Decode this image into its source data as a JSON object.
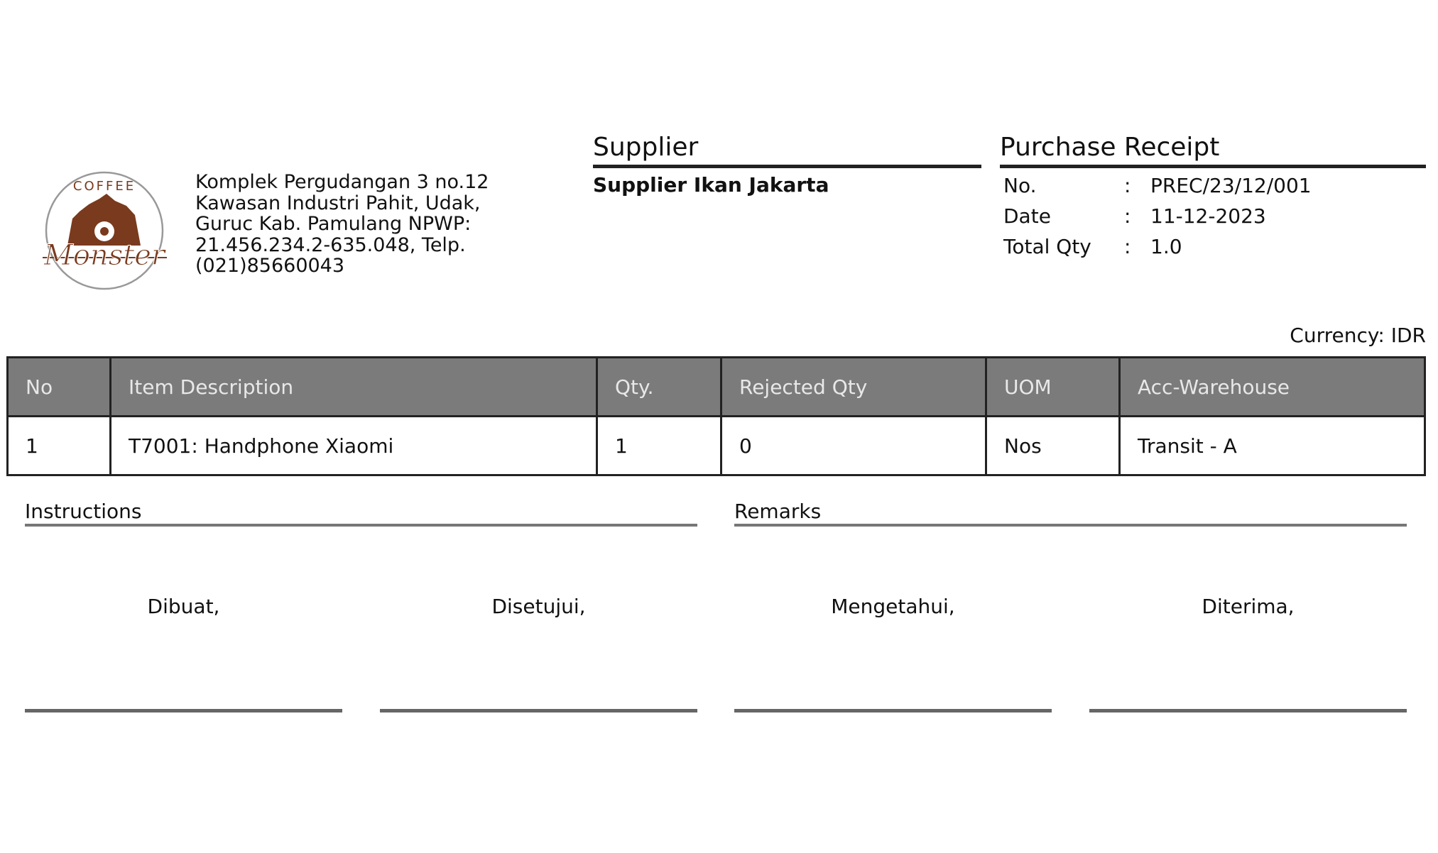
{
  "company": {
    "logo_text": [
      "COFFEE",
      "Monster"
    ],
    "address_lines": [
      "Komplek Pergudangan 3 no.12",
      "Kawasan Industri Pahit, Udak,",
      "Guruc Kab. Pamulang NPWP:",
      "21.456.234.2-635.048, Telp.",
      "(021)85660043"
    ],
    "brand_color": "#7a3a1e"
  },
  "supplier": {
    "title": "Supplier",
    "name": "Supplier Ikan Jakarta"
  },
  "receipt": {
    "title": "Purchase Receipt",
    "fields": [
      {
        "label": "No.",
        "sep": ":",
        "value": "PREC/23/12/001"
      },
      {
        "label": "Date",
        "sep": ":",
        "value": "11-12-2023"
      },
      {
        "label": "Total Qty",
        "sep": ":",
        "value": "1.0"
      }
    ]
  },
  "currency": "Currency: IDR",
  "table": {
    "headers": [
      "No",
      "Item Description",
      "Qty.",
      "Rejected Qty",
      "UOM",
      "Acc-Warehouse"
    ],
    "rows": [
      [
        "1",
        "T7001: Handphone Xiaomi",
        "1",
        "0",
        "Nos",
        "Transit - A"
      ]
    ],
    "header_bg": "#7b7b7b"
  },
  "instructions": {
    "title": "Instructions"
  },
  "remarks": {
    "title": "Remarks"
  },
  "signatures": [
    "Dibuat,",
    "Disetujui,",
    "Mengetahui,",
    "Diterima,"
  ]
}
